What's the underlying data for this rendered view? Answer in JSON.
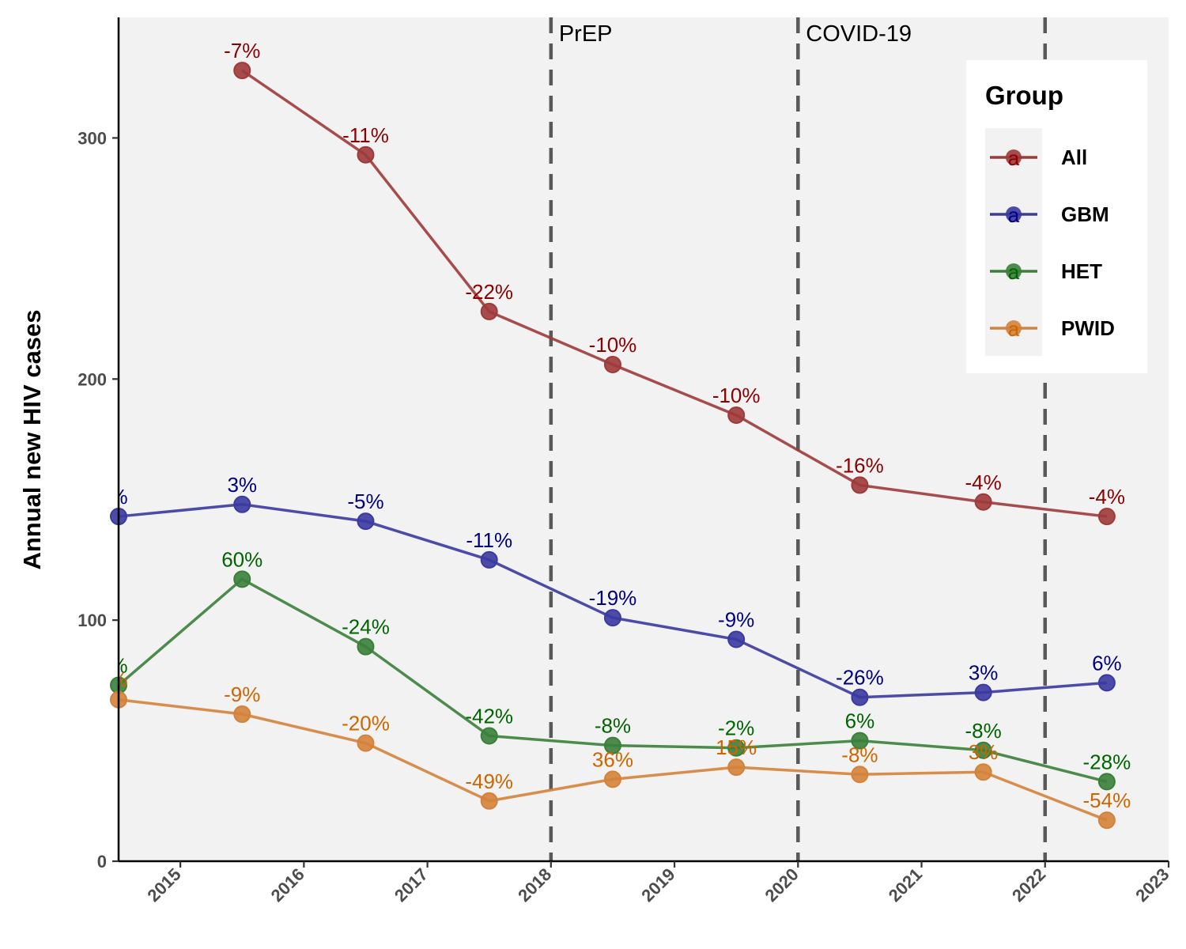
{
  "chart_data": {
    "type": "line",
    "ylabel": "Annual new HIV cases",
    "xlabel": "",
    "xlim": [
      2014.5,
      2023
    ],
    "ylim": [
      0,
      350
    ],
    "x_ticks": [
      "2015",
      "2016",
      "2017",
      "2018",
      "2019",
      "2020",
      "2021",
      "2022",
      "2023"
    ],
    "y_ticks": [
      "0",
      "100",
      "200",
      "300"
    ],
    "grid": false,
    "legend": {
      "title": "Group",
      "placement": "top-right"
    },
    "vlines": [
      {
        "x": 2018,
        "label": "PrEP"
      },
      {
        "x": 2020,
        "label": "COVID-19"
      },
      {
        "x": 2022,
        "label": ""
      }
    ],
    "x": [
      2014.5,
      2015.5,
      2016.5,
      2017.5,
      2018.5,
      2019.5,
      2020.5,
      2021.5,
      2022.5
    ],
    "series": [
      {
        "name": "All",
        "color": "#9e3a3a",
        "label_color": "#8b0000",
        "values": [
          null,
          328,
          293,
          228,
          206,
          185,
          156,
          149,
          143
        ],
        "labels": [
          "",
          "-7%",
          "-11%",
          "-22%",
          "-10%",
          "-10%",
          "-16%",
          "-4%",
          "-4%"
        ]
      },
      {
        "name": "GBM",
        "color": "#3a3aa0",
        "label_color": "#00007f",
        "values": [
          143,
          148,
          141,
          125,
          101,
          92,
          68,
          70,
          74
        ],
        "labels": [
          "%",
          "3%",
          "-5%",
          "-11%",
          "-19%",
          "-9%",
          "-26%",
          "3%",
          "6%"
        ]
      },
      {
        "name": "HET",
        "color": "#3a7f3a",
        "label_color": "#006400",
        "values": [
          73,
          117,
          89,
          52,
          48,
          47,
          50,
          46,
          33
        ],
        "labels": [
          "%",
          "60%",
          "-24%",
          "-42%",
          "-8%",
          "-2%",
          "6%",
          "-8%",
          "-28%"
        ]
      },
      {
        "name": "PWID",
        "color": "#d4823a",
        "label_color": "#cc6600",
        "values": [
          67,
          61,
          49,
          25,
          34,
          39,
          36,
          37,
          17
        ],
        "labels": [
          "%",
          "-9%",
          "-20%",
          "-49%",
          "36%",
          "15%",
          "-8%",
          "3%",
          "-54%"
        ]
      }
    ]
  }
}
